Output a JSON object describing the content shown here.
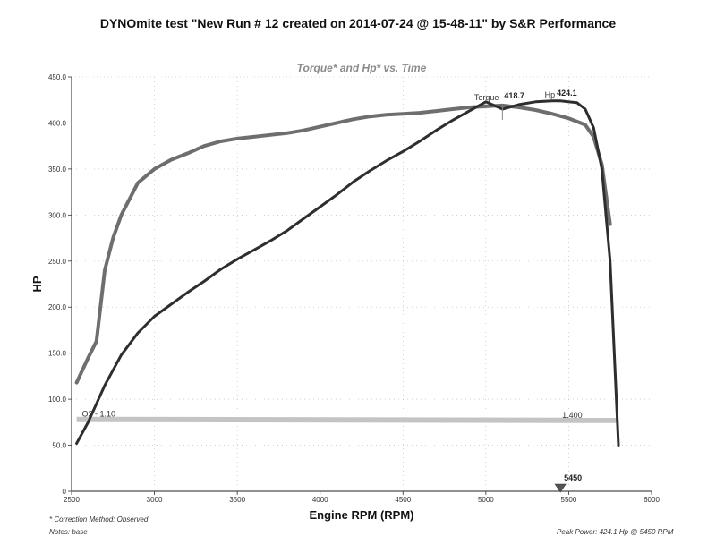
{
  "title": "DYNOmite test \"New Run # 12 created on 2014-07-24 @ 15-48-11\" by S&R Performance",
  "notes": {
    "correction": "* Correction Method: Observed",
    "notes": "Notes:  base",
    "peak_power": "Peak Power:  424.1 Hp @ 5450 RPM"
  },
  "colors": {
    "hp": "#2e2e2e",
    "torque": "#6e6e6e",
    "o2": "#c4c4c4",
    "marker": "#555555"
  },
  "chart_data": {
    "type": "line",
    "title": "Torque* and Hp* vs. Time",
    "xlabel": "Engine RPM (RPM)",
    "ylabel": "HP",
    "xlim": [
      2500,
      6000
    ],
    "ylim": [
      0,
      450
    ],
    "x_ticks": [
      "2500",
      "3000",
      "3500",
      "4000",
      "4500",
      "5000",
      "5500",
      "6000"
    ],
    "y_ticks": [
      "0",
      "50.0",
      "100.0",
      "150.0",
      "200.0",
      "250.0",
      "300.0",
      "350.0",
      "400.0",
      "450.0"
    ],
    "grid": "dotted",
    "series": [
      {
        "name": "Hp",
        "peak_label": "424.1",
        "peak_rpm": 5450,
        "x": [
          2530,
          2600,
          2700,
          2800,
          2900,
          3000,
          3100,
          3200,
          3300,
          3400,
          3500,
          3600,
          3700,
          3800,
          3900,
          4000,
          4100,
          4200,
          4300,
          4400,
          4500,
          4600,
          4700,
          4800,
          4900,
          5000,
          5100,
          5200,
          5300,
          5400,
          5450,
          5550,
          5600,
          5650,
          5700,
          5750,
          5800
        ],
        "y": [
          52,
          75,
          115,
          148,
          172,
          190,
          203,
          216,
          228,
          241,
          252,
          262,
          272,
          283,
          296,
          309,
          322,
          336,
          348,
          359,
          369,
          380,
          392,
          403,
          413,
          423,
          415,
          420,
          423,
          424,
          424,
          422,
          415,
          395,
          350,
          250,
          50
        ]
      },
      {
        "name": "Torque",
        "peak_label": "418.7",
        "peak_rpm": 5100,
        "x": [
          2530,
          2600,
          2650,
          2700,
          2750,
          2800,
          2900,
          3000,
          3100,
          3200,
          3300,
          3400,
          3500,
          3600,
          3700,
          3800,
          3900,
          4000,
          4100,
          4200,
          4300,
          4400,
          4500,
          4600,
          4700,
          4800,
          4900,
          5000,
          5100,
          5200,
          5300,
          5400,
          5500,
          5600,
          5650,
          5700,
          5750
        ],
        "y": [
          118,
          145,
          163,
          240,
          275,
          300,
          335,
          350,
          360,
          367,
          375,
          380,
          383,
          385,
          387,
          389,
          392,
          396,
          400,
          404,
          407,
          409,
          410,
          411,
          413,
          415,
          417,
          418,
          419,
          417,
          414,
          410,
          405,
          398,
          385,
          355,
          290
        ]
      },
      {
        "name": "O2",
        "start_label": "O2 - 1.10",
        "end_label": "1.400",
        "x": [
          2530,
          5800
        ],
        "y": [
          78,
          77
        ]
      }
    ],
    "marker": {
      "rpm": 5450,
      "label": "5450"
    }
  }
}
